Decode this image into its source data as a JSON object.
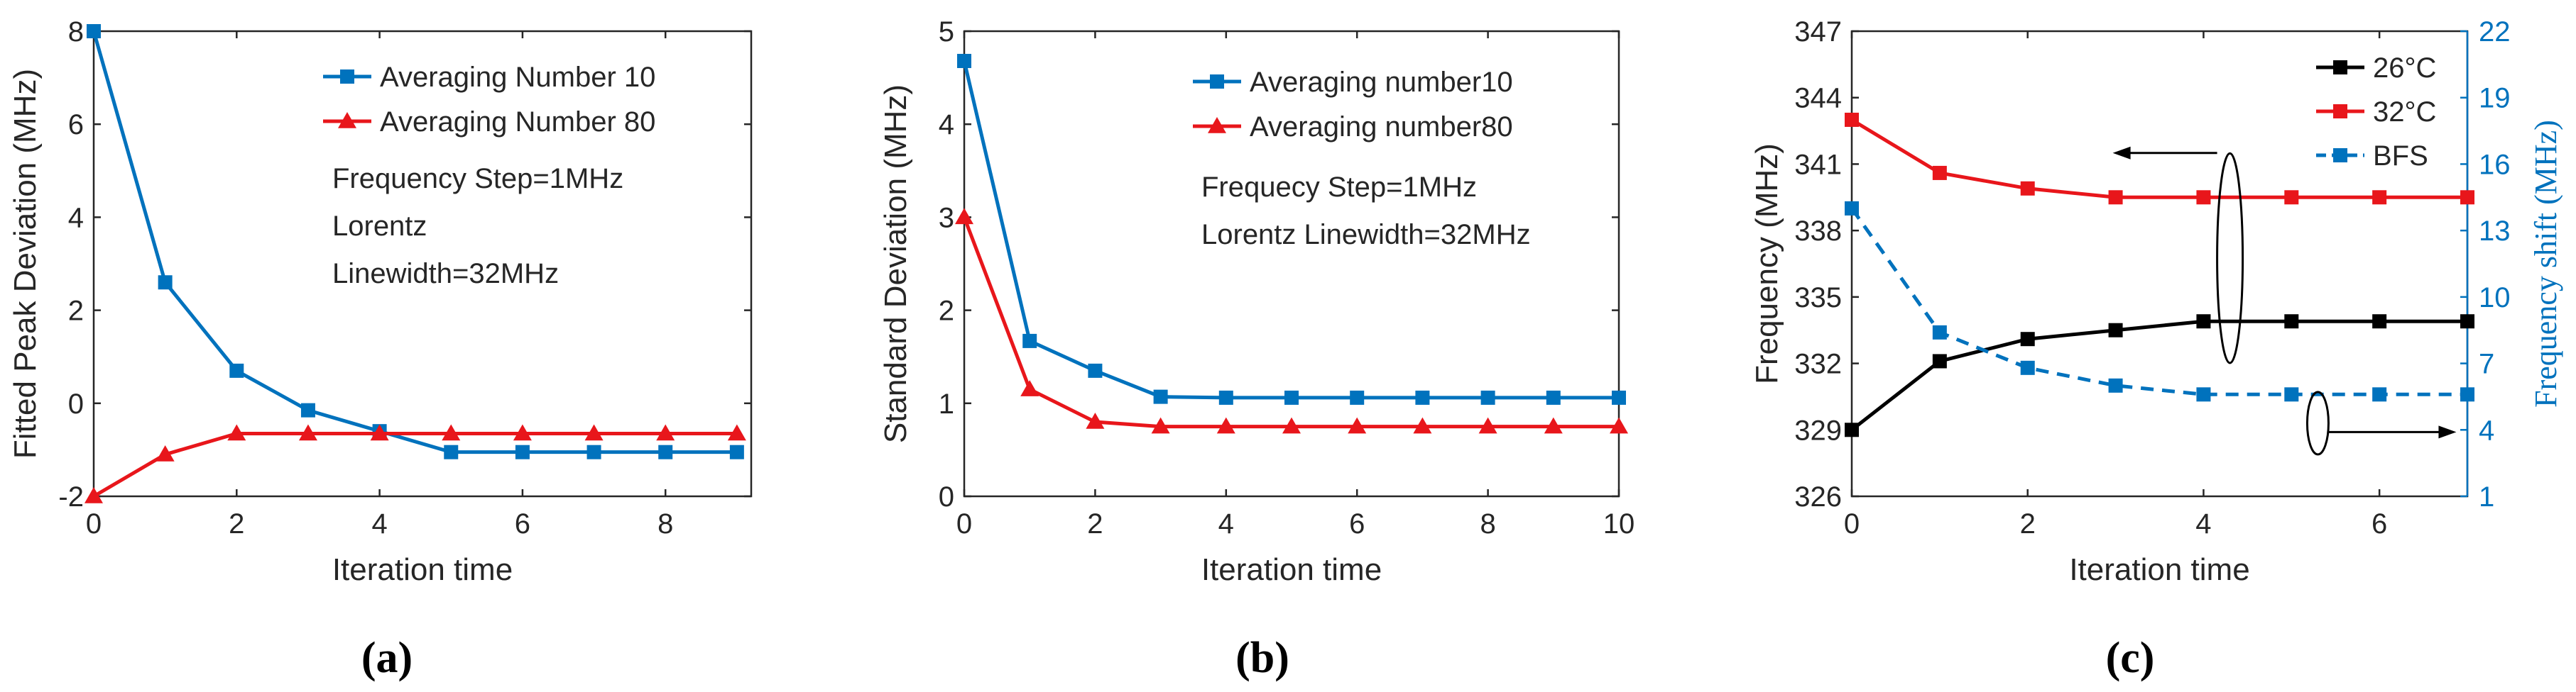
{
  "chart_data": [
    {
      "type": "line",
      "panel_label": "(a)",
      "title": "",
      "xlabel": "Iteration time",
      "ylabel": "Fitted Peak Deviation (MHz)",
      "xlim": [
        0,
        9.2
      ],
      "ylim": [
        -2,
        8
      ],
      "xticks": [
        0,
        2,
        4,
        6,
        8
      ],
      "yticks": [
        -2,
        0,
        2,
        4,
        6,
        8
      ],
      "series": [
        {
          "name": "Averaging Number 10",
          "color": "#0072BD",
          "marker": "square",
          "x": [
            0,
            1,
            2,
            3,
            4,
            5,
            6,
            7,
            8,
            9
          ],
          "values": [
            8,
            2.6,
            0.7,
            -0.15,
            -0.6,
            -1.05,
            -1.05,
            -1.05,
            -1.05,
            -1.05
          ]
        },
        {
          "name": "Averaging Number 80",
          "color": "#E8161B",
          "marker": "triangle",
          "x": [
            0,
            1,
            2,
            3,
            4,
            5,
            6,
            7,
            8,
            9
          ],
          "values": [
            -2,
            -1.1,
            -0.65,
            -0.65,
            -0.65,
            -0.65,
            -0.65,
            -0.65,
            -0.65,
            -0.65
          ]
        }
      ],
      "annotations": [
        "Frequency Step=1MHz",
        "Lorentz",
        "Linewidth=32MHz"
      ]
    },
    {
      "type": "line",
      "panel_label": "(b)",
      "title": "",
      "xlabel": "Iteration time",
      "ylabel": "Standard Deviation (MHz)",
      "xlim": [
        0,
        10
      ],
      "ylim": [
        0,
        5
      ],
      "xticks": [
        0,
        2,
        4,
        6,
        8,
        10
      ],
      "yticks": [
        0,
        1,
        2,
        3,
        4,
        5
      ],
      "series": [
        {
          "name": "Averaging number10",
          "color": "#0072BD",
          "marker": "square",
          "x": [
            0,
            1,
            2,
            3,
            4,
            5,
            6,
            7,
            8,
            9,
            10
          ],
          "values": [
            4.68,
            1.67,
            1.35,
            1.07,
            1.06,
            1.06,
            1.06,
            1.06,
            1.06,
            1.06,
            1.06
          ]
        },
        {
          "name": "Averaging number80",
          "color": "#E8161B",
          "marker": "triangle",
          "x": [
            0,
            1,
            2,
            3,
            4,
            5,
            6,
            7,
            8,
            9,
            10
          ],
          "values": [
            3.0,
            1.15,
            0.8,
            0.75,
            0.75,
            0.75,
            0.75,
            0.75,
            0.75,
            0.75,
            0.75
          ]
        }
      ],
      "annotations": [
        "Frequecy Step=1MHz",
        "Lorentz Linewidth=32MHz"
      ]
    },
    {
      "type": "line",
      "panel_label": "(c)",
      "title": "",
      "xlabel": "Iteration time",
      "ylabel": "Frequency (MHz)",
      "ylabel_right": "Frequency shift (MHz)",
      "xlim": [
        0,
        7
      ],
      "ylim": [
        326,
        347
      ],
      "ylim_right": [
        1,
        22
      ],
      "xticks": [
        0,
        2,
        4,
        6
      ],
      "yticks": [
        326,
        329,
        332,
        335,
        338,
        341,
        344,
        347
      ],
      "yticks_right": [
        1,
        4,
        7,
        10,
        13,
        16,
        19,
        22
      ],
      "series": [
        {
          "name": "26°C",
          "color": "#000000",
          "marker": "square",
          "axis": "left",
          "style": "solid",
          "x": [
            0,
            1,
            2,
            3,
            4,
            5,
            6,
            7
          ],
          "values": [
            329,
            332.1,
            333.1,
            333.5,
            333.9,
            333.9,
            333.9,
            333.9
          ]
        },
        {
          "name": "32°C",
          "color": "#E8161B",
          "marker": "square",
          "axis": "left",
          "style": "solid",
          "x": [
            0,
            1,
            2,
            3,
            4,
            5,
            6,
            7
          ],
          "values": [
            343,
            340.6,
            339.9,
            339.5,
            339.5,
            339.5,
            339.5,
            339.5
          ]
        },
        {
          "name": "BFS",
          "color": "#0072BD",
          "marker": "square",
          "axis": "right",
          "style": "dashed",
          "x": [
            0,
            1,
            2,
            3,
            4,
            5,
            6,
            7
          ],
          "values": [
            14,
            8.4,
            6.8,
            6.0,
            5.6,
            5.6,
            5.6,
            5.6
          ]
        }
      ]
    }
  ]
}
